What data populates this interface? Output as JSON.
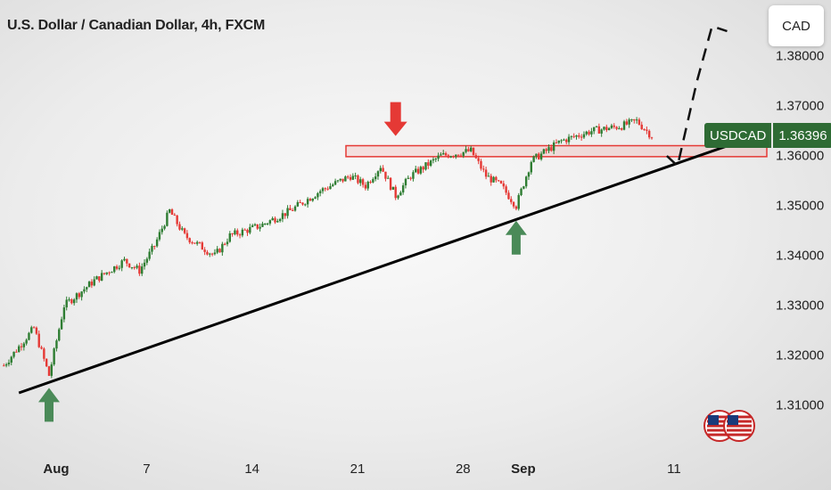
{
  "header": {
    "title": "U.S. Dollar / Canadian Dollar, 4h, FXCM"
  },
  "currency_box": {
    "label": "CAD"
  },
  "last_price": {
    "symbol": "USDCAD",
    "value": "1.36396"
  },
  "colors": {
    "up": "#2e7d32",
    "down": "#e53935",
    "zone": "#e53935",
    "arrow_down": "#e53935",
    "arrow_up": "#4a8a58",
    "trendline": "#000000",
    "badge": "#2e6b34"
  },
  "chart_data": {
    "type": "candlestick",
    "y_axis": {
      "ticks": [
        "1.31000",
        "1.32000",
        "1.33000",
        "1.34000",
        "1.35000",
        "1.36000",
        "1.37000",
        "1.38000"
      ],
      "ylim": [
        1.3055,
        1.39
      ]
    },
    "x_axis": {
      "ticks": [
        "Aug",
        "7",
        "14",
        "21",
        "28",
        "Sep",
        "11"
      ],
      "bold_ticks": [
        "Aug",
        "Sep"
      ]
    },
    "close_path": [
      [
        "Jul 29",
        1.318
      ],
      [
        "Jul 31",
        1.3255
      ],
      [
        "Aug 1",
        1.316
      ],
      [
        "Aug 2",
        1.33
      ],
      [
        "Aug 4",
        1.335
      ],
      [
        "Aug 6",
        1.339
      ],
      [
        "Aug 7",
        1.337
      ],
      [
        "Aug 8",
        1.342
      ],
      [
        "Aug 9",
        1.349
      ],
      [
        "Aug 10",
        1.344
      ],
      [
        "Aug 11",
        1.342
      ],
      [
        "Aug 12",
        1.34
      ],
      [
        "Aug 13",
        1.344
      ],
      [
        "Aug 15",
        1.346
      ],
      [
        "Aug 17",
        1.349
      ],
      [
        "Aug 19",
        1.353
      ],
      [
        "Aug 21",
        1.356
      ],
      [
        "Aug 22",
        1.354
      ],
      [
        "Aug 23",
        1.358
      ],
      [
        "Aug 24",
        1.352
      ],
      [
        "Aug 25",
        1.356
      ],
      [
        "Aug 27",
        1.36
      ],
      [
        "Aug 29",
        1.361
      ],
      [
        "Aug 30",
        1.356
      ],
      [
        "Aug 31",
        1.354
      ],
      [
        "Sep 1",
        1.35
      ],
      [
        "Sep 2",
        1.359
      ],
      [
        "Sep 3",
        1.361
      ],
      [
        "Sep 4",
        1.363
      ],
      [
        "Sep 6",
        1.365
      ],
      [
        "Sep 8",
        1.366
      ],
      [
        "Sep 9",
        1.367
      ],
      [
        "Sep 10",
        1.364
      ]
    ],
    "resistance_zone": {
      "from": 1.35985,
      "to": 1.36205,
      "start": "Aug 21"
    },
    "trendline": {
      "from": [
        "Jul 30",
        1.3125
      ],
      "to": [
        "Sep 15",
        1.362
      ]
    },
    "projection": [
      [
        "Sep 11",
        1.36
      ],
      [
        "Sep 11",
        1.358
      ],
      [
        "Sep 13",
        1.375
      ],
      [
        "Sep 14",
        1.386
      ],
      [
        "Sep 15",
        1.385
      ]
    ],
    "annotations": [
      {
        "type": "arrow-down",
        "at": "Aug 24",
        "value": 1.364
      },
      {
        "type": "arrow-up",
        "at": "Aug 1",
        "value": 1.3135
      },
      {
        "type": "arrow-up",
        "at": "Sep 1",
        "value": 1.347
      }
    ]
  }
}
